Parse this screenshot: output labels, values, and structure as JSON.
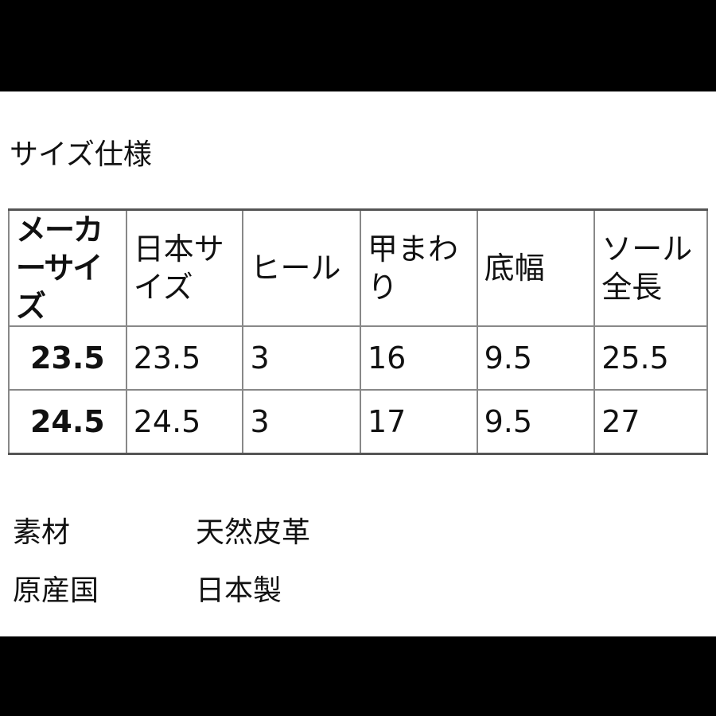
{
  "title": "サイズ仕様",
  "table": {
    "headers": [
      "メーカーサイズ",
      "日本サイズ",
      "ヒール",
      "甲まわり",
      "底幅",
      "ソール全長"
    ],
    "rows": [
      [
        "23.5",
        "23.5",
        "3",
        "16",
        "9.5",
        "25.5"
      ],
      [
        "24.5",
        "24.5",
        "3",
        "17",
        "9.5",
        "27"
      ]
    ]
  },
  "specs": [
    {
      "label": "素材",
      "value": "天然皮革"
    },
    {
      "label": "原産国",
      "value": "日本製"
    }
  ]
}
